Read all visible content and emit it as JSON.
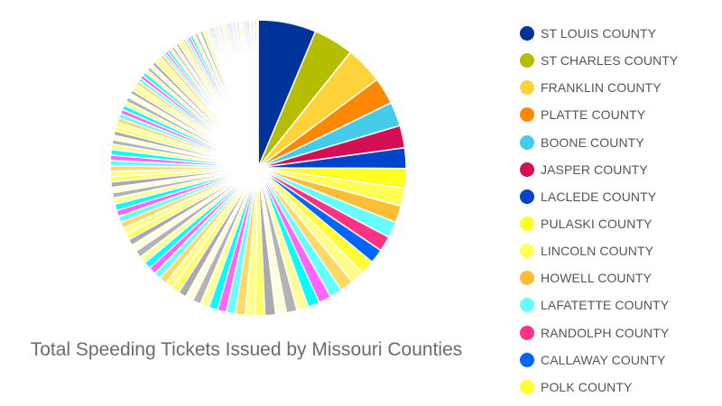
{
  "chart_data": {
    "type": "pie",
    "title": "Total Speeding Tickets Issued by Missouri Counties",
    "legend_position": "right",
    "series": [
      {
        "name": "ST LOUIS COUNTY",
        "value": 6.5,
        "color": "#003399"
      },
      {
        "name": "ST CHARLES COUNTY",
        "value": 4.5,
        "color": "#b5bd00"
      },
      {
        "name": "FRANKLIN COUNTY",
        "value": 4.2,
        "color": "#ffd23a"
      },
      {
        "name": "PLATTE COUNTY",
        "value": 3.0,
        "color": "#ff8800"
      },
      {
        "name": "BOONE COUNTY",
        "value": 2.7,
        "color": "#44ccea"
      },
      {
        "name": "JASPER COUNTY",
        "value": 2.5,
        "color": "#d40f55"
      },
      {
        "name": "LACLEDE COUNTY",
        "value": 2.3,
        "color": "#0044cc"
      },
      {
        "name": "PULASKI COUNTY",
        "value": 2.2,
        "color": "#ffff22"
      },
      {
        "name": "LINCOLN COUNTY",
        "value": 2.0,
        "color": "#ffff55"
      },
      {
        "name": "HOWELL COUNTY",
        "value": 1.9,
        "color": "#fcbe35"
      },
      {
        "name": "LAFATETTE COUNTY",
        "value": 1.8,
        "color": "#66ffff"
      },
      {
        "name": "RANDOLPH COUNTY",
        "value": 1.7,
        "color": "#ff3385"
      },
      {
        "name": "CALLAWAY COUNTY",
        "value": 1.6,
        "color": "#0066ff"
      },
      {
        "name": "POLK COUNTY",
        "value": 1.6,
        "color": "#ffff33"
      }
    ],
    "other_slices": [
      1.5,
      1.5,
      1.4,
      1.4,
      1.3,
      1.3,
      1.2,
      1.2,
      1.2,
      1.1,
      1.1,
      1.1,
      1.0,
      1.0,
      1.0,
      1.0,
      0.9,
      0.9,
      0.9,
      0.9,
      0.9,
      0.8,
      0.8,
      0.8,
      0.8,
      0.8,
      0.8,
      0.8,
      0.7,
      0.7,
      0.7,
      0.7,
      0.7,
      0.7,
      0.7,
      0.7,
      0.6,
      0.6,
      0.6,
      0.6,
      0.6,
      0.6,
      0.6,
      0.6,
      0.6,
      0.6,
      0.5,
      0.5,
      0.5,
      0.5,
      0.5,
      0.5,
      0.5,
      0.5,
      0.5,
      0.5,
      0.5,
      0.5,
      0.4,
      0.4,
      0.4,
      0.4,
      0.4,
      0.4,
      0.4,
      0.4,
      0.4,
      0.4,
      0.4,
      0.4,
      0.4,
      0.4,
      0.3,
      0.3,
      0.3,
      0.3,
      0.3,
      0.3,
      0.3,
      0.3,
      0.3,
      0.3,
      0.3,
      0.3,
      0.3,
      0.3,
      0.3,
      0.3,
      0.3,
      0.3,
      0.2,
      0.2,
      0.2,
      0.2,
      0.2,
      0.2,
      0.2,
      0.2,
      0.2,
      0.2,
      0.2,
      0.2,
      0.2,
      0.2,
      0.2,
      0.2,
      0.2,
      0.2,
      0.2,
      0.2,
      0.2,
      0.2,
      0.2,
      0.2,
      0.2,
      0.2,
      0.2,
      0.2,
      0.2,
      0.2
    ],
    "other_palette": [
      "#ffff88",
      "#ffd966",
      "#66ffff",
      "#ff66ff",
      "#00ffff",
      "#ffff99",
      "#b3b3b3",
      "#ffffdd",
      "#aaaaaa",
      "#ffff66"
    ]
  }
}
